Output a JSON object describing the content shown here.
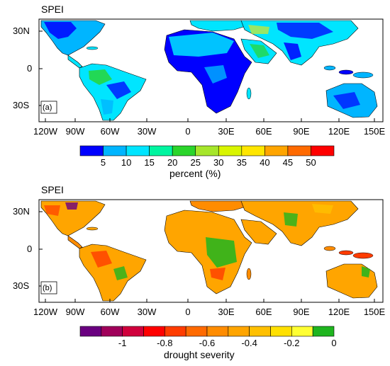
{
  "panel_a": {
    "title": "SPEI",
    "panel_label": "(a)",
    "lat_ticks": [
      "30N",
      "0",
      "30S"
    ],
    "lon_ticks": [
      "120W",
      "90W",
      "60W",
      "30W",
      "0",
      "30E",
      "60E",
      "90E",
      "120E",
      "150E"
    ],
    "colorbar": {
      "title": "percent (%)",
      "labels": [
        "5",
        "10",
        "15",
        "20",
        "25",
        "30",
        "35",
        "40",
        "45",
        "50"
      ],
      "colors": [
        "#0000ff",
        "#00b5ff",
        "#00e5ff",
        "#00f5a0",
        "#2bd52b",
        "#a6e62b",
        "#d9f500",
        "#ffe600",
        "#ffa500",
        "#ff6a00",
        "#ff0000"
      ]
    }
  },
  "panel_b": {
    "title": "SPEI",
    "panel_label": "(b)",
    "lat_ticks": [
      "30N",
      "0",
      "30S"
    ],
    "lon_ticks": [
      "120W",
      "90W",
      "60W",
      "30W",
      "0",
      "30E",
      "60E",
      "90E",
      "120E",
      "150E"
    ],
    "colorbar": {
      "title": "drought severity",
      "labels": [
        "-1",
        "-0.8",
        "-0.6",
        "-0.4",
        "-0.2",
        "0"
      ],
      "colors": [
        "#6a0080",
        "#a0005a",
        "#d0003c",
        "#ff0000",
        "#ff3c00",
        "#ff6a00",
        "#ff8c00",
        "#ffa500",
        "#ffc000",
        "#ffe000",
        "#ffff33",
        "#1fb51f"
      ]
    }
  },
  "map_colors": {
    "ocean": "#ffffff",
    "panel_a_land": [
      "#00e5ff",
      "#00b5ff",
      "#0000ff",
      "#2bd52b",
      "#ffe600"
    ],
    "panel_b_land": [
      "#ffa500",
      "#ff8c00",
      "#ffc000",
      "#ff3c00",
      "#1fb51f"
    ]
  }
}
